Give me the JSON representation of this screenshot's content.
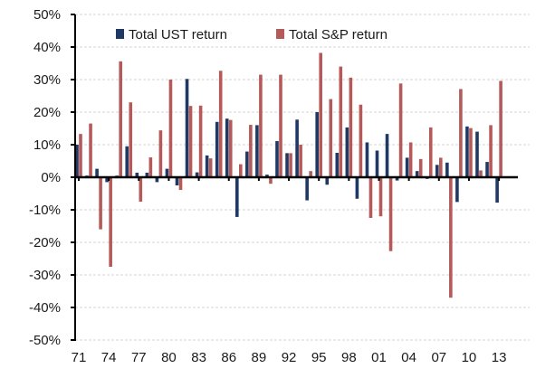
{
  "chart_data": {
    "type": "bar",
    "title": "",
    "xlabel": "",
    "ylabel": "",
    "ylim": [
      -50,
      50
    ],
    "yticks": [
      50,
      40,
      30,
      20,
      10,
      0,
      -10,
      -20,
      -30,
      -40,
      -50
    ],
    "ytick_labels": [
      "50%",
      "40%",
      "30%",
      "20%",
      "10%",
      "0%",
      "-10%",
      "-20%",
      "-30%",
      "-40%",
      "-50%"
    ],
    "grid": true,
    "legend_position": "top",
    "categories": [
      "1971",
      "1972",
      "1973",
      "1974",
      "1975",
      "1976",
      "1977",
      "1978",
      "1979",
      "1980",
      "1981",
      "1982",
      "1983",
      "1984",
      "1985",
      "1986",
      "1987",
      "1988",
      "1989",
      "1990",
      "1991",
      "1992",
      "1993",
      "1994",
      "1995",
      "1996",
      "1997",
      "1998",
      "1999",
      "2000",
      "2001",
      "2002",
      "2003",
      "2004",
      "2005",
      "2006",
      "2007",
      "2008",
      "2009",
      "2010",
      "2011",
      "2012",
      "2013"
    ],
    "xtick_labels": [
      "71",
      "74",
      "77",
      "80",
      "83",
      "86",
      "89",
      "92",
      "95",
      "98",
      "01",
      "04",
      "07",
      "10",
      "13"
    ],
    "xtick_every": 3,
    "series": [
      {
        "name": "Total UST return",
        "color": "#1f3864",
        "values": [
          10.0,
          0.5,
          2.6,
          -1.5,
          0.5,
          9.5,
          1.4,
          1.4,
          -1.5,
          2.6,
          -2.5,
          30.2,
          1.5,
          6.7,
          17.0,
          18.0,
          -12.2,
          7.9,
          16.0,
          0.8,
          11.1,
          7.4,
          17.7,
          -7.1,
          20.0,
          -2.3,
          7.5,
          15.3,
          -6.6,
          10.7,
          8.2,
          13.3,
          -1.0,
          6.0,
          1.9,
          -0.5,
          3.8,
          4.5,
          -7.6,
          15.6,
          14.0,
          4.7,
          -7.8
        ]
      },
      {
        "name": "Total S&P return",
        "color": "#b55a5a",
        "values": [
          13.3,
          16.5,
          -16.0,
          -27.5,
          35.6,
          23.0,
          -7.5,
          6.1,
          14.4,
          30.0,
          -3.9,
          21.9,
          22.0,
          5.8,
          32.7,
          17.6,
          4.0,
          16.1,
          31.5,
          -2.0,
          31.5,
          7.4,
          10.0,
          1.9,
          38.2,
          24.0,
          34.0,
          30.6,
          22.3,
          -12.5,
          -12.0,
          -22.7,
          28.8,
          10.7,
          5.6,
          15.3,
          6.0,
          -37.0,
          27.1,
          15.1,
          2.1,
          16.0,
          29.6
        ]
      }
    ]
  }
}
